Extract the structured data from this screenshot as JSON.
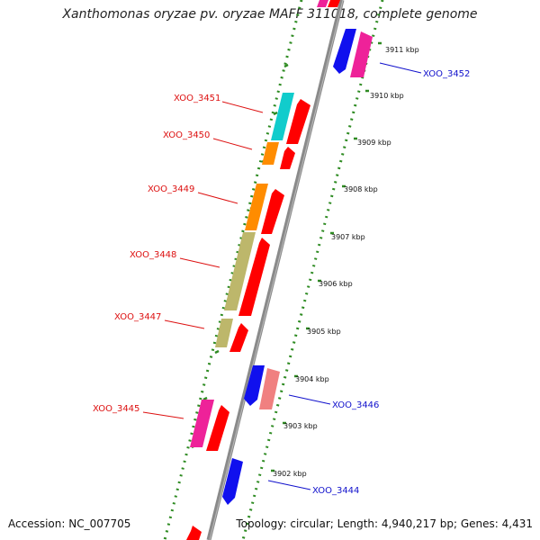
{
  "title": "Xanthomonas oryzae pv. oryzae MAFF 311018, complete genome",
  "footer": {
    "accession": "Accession: NC_007705",
    "topology": "Topology: circular; Length: 4,940,217 bp; Genes: 4,431"
  },
  "colors": {
    "backbone": "#8a8a8a",
    "dotted_track": "#2e8b22",
    "label_left": "#dd1111",
    "label_right": "#1111cc",
    "magenta": "#ee2299",
    "red": "#ff0000",
    "cyan": "#11cccc",
    "orange": "#ff8c00",
    "olive": "#bdb76b",
    "blue": "#1010ee",
    "pink": "#f08080"
  },
  "tick_labels": [
    "3911 kbp",
    "3910 kbp",
    "3909 kbp",
    "3908 kbp",
    "3907 kbp",
    "3906 kbp",
    "3905 kbp",
    "3904 kbp",
    "3903 kbp",
    "3902 kbp"
  ],
  "genes_left": [
    {
      "label": "XOO_3451"
    },
    {
      "label": "XOO_3450"
    },
    {
      "label": "XOO_3449"
    },
    {
      "label": "XOO_3448"
    },
    {
      "label": "XOO_3447"
    },
    {
      "label": "XOO_3445"
    }
  ],
  "genes_right": [
    {
      "label": "XOO_3452"
    },
    {
      "label": "XOO_3446"
    },
    {
      "label": "XOO_3444"
    }
  ]
}
